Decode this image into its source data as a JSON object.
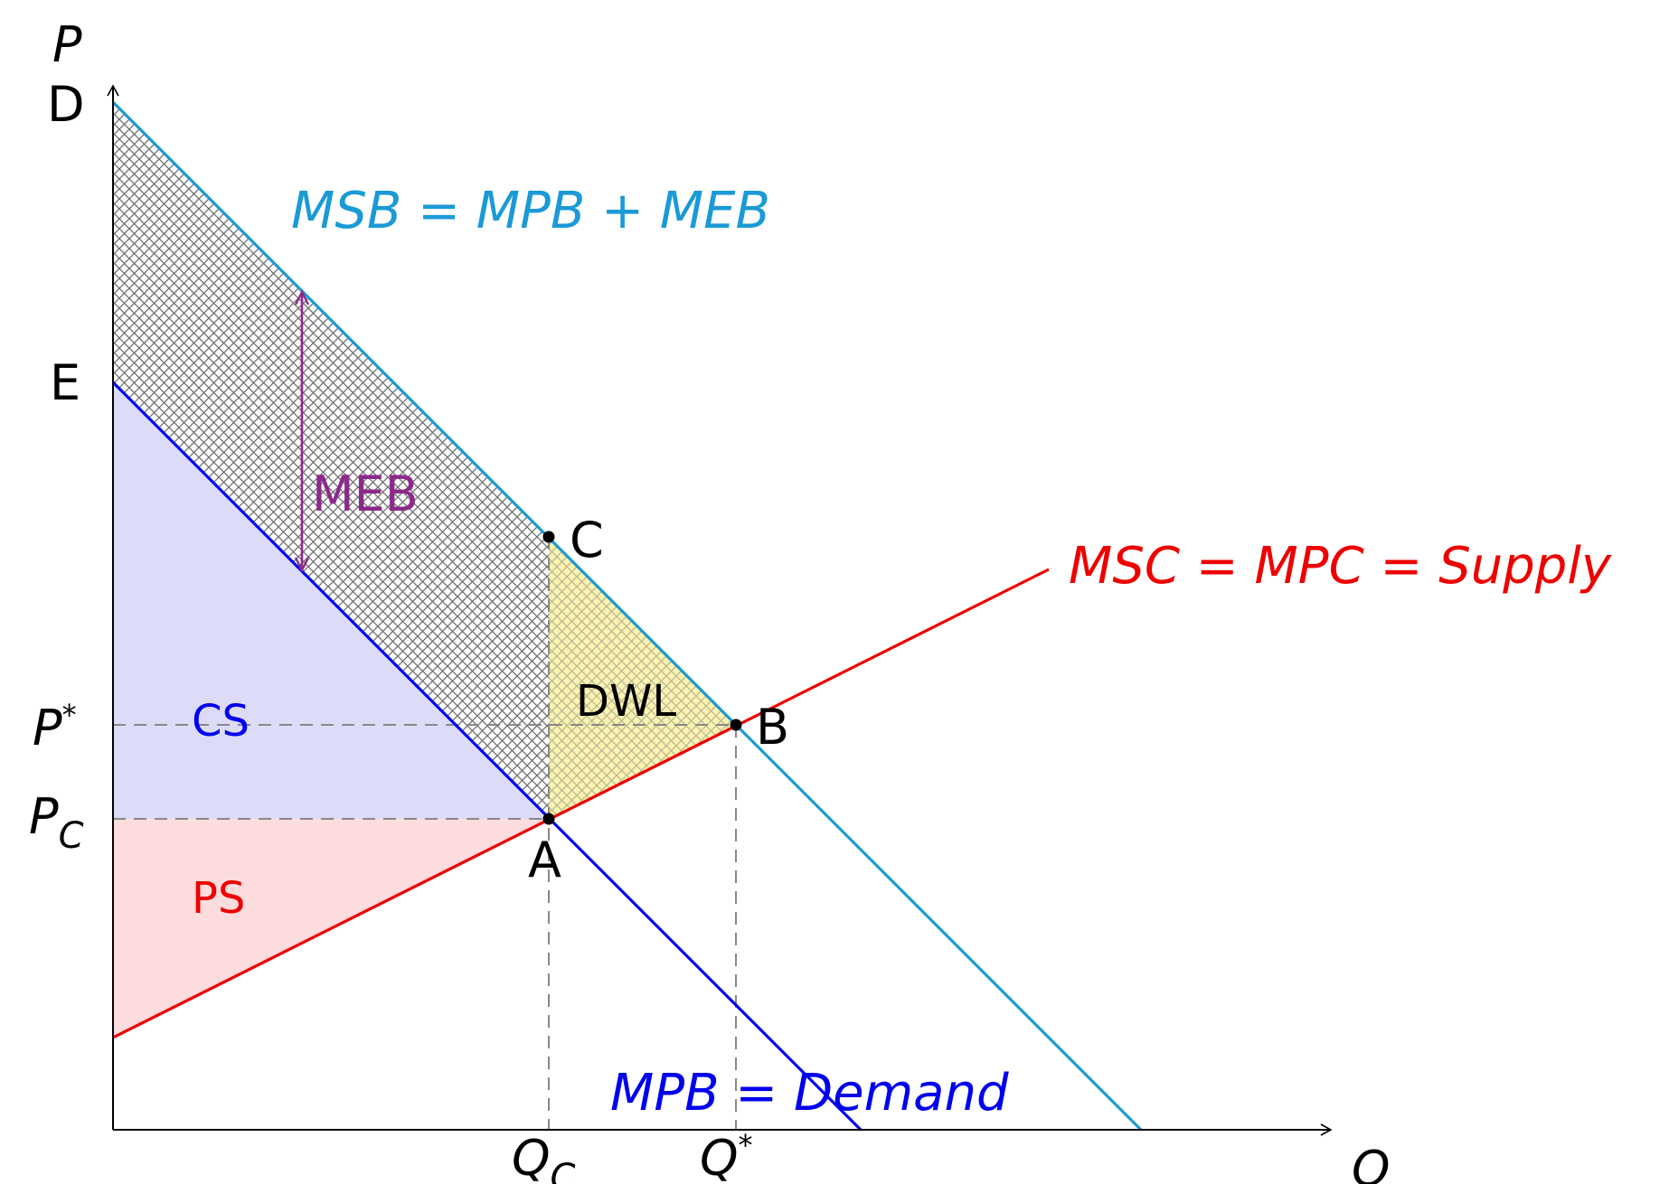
{
  "axes": {
    "y_label": "P",
    "x_label": "Q"
  },
  "price_labels": {
    "d": "D",
    "e": "E",
    "p_star": "P",
    "p_star_sup": "*",
    "p_c": "P",
    "p_c_sub": "C"
  },
  "quantity_labels": {
    "q_c": "Q",
    "q_c_sub": "C",
    "q_star": "Q",
    "q_star_sup": "*"
  },
  "curves": {
    "msb": "MSB = MPB + MEB",
    "msc": "MSC = MPC = Supply",
    "mpb": "MPB = Demand"
  },
  "points": {
    "a": "A",
    "b": "B",
    "c": "C"
  },
  "areas": {
    "cs": "CS",
    "ps": "PS",
    "dwl": "DWL",
    "meb": "MEB"
  },
  "colors": {
    "msb": "#1a9ad6",
    "mpb": "#0000ee",
    "msc": "#ee0000",
    "meb": "#8b2a8b",
    "cs_fill": "#dcdcf8",
    "ps_fill": "#fcdcdc",
    "dwl_fill": "#fbf3b0",
    "guide": "#888888"
  }
}
